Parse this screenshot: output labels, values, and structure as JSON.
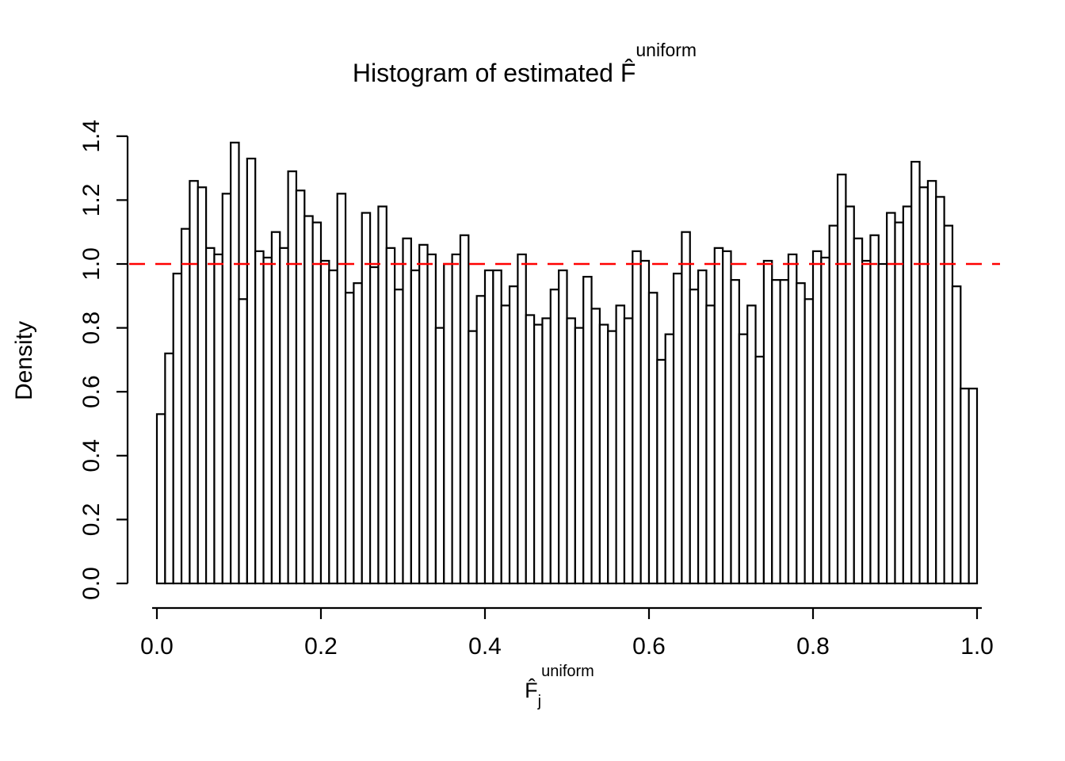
{
  "title": {
    "text": "Histogram of estimated F̂",
    "superscript": "uniform"
  },
  "ylabel": "Density",
  "xlabel": {
    "base": "F̂",
    "subscript": "j",
    "superscript": "uniform"
  },
  "axes": {
    "x_ticks": [
      "0.0",
      "0.2",
      "0.4",
      "0.6",
      "0.8",
      "1.0"
    ],
    "x_tick_values": [
      0.0,
      0.2,
      0.4,
      0.6,
      0.8,
      1.0
    ],
    "y_ticks": [
      "0.0",
      "0.2",
      "0.4",
      "0.6",
      "0.8",
      "1.0",
      "1.2",
      "1.4"
    ],
    "y_tick_values": [
      0.0,
      0.2,
      0.4,
      0.6,
      0.8,
      1.0,
      1.2,
      1.4
    ]
  },
  "reference_line": {
    "value": 1.0,
    "color": "#ff0000",
    "style": "dashed"
  },
  "bar_style": {
    "fill": "#ffffff",
    "stroke": "#000000"
  },
  "chart_data": {
    "type": "bar",
    "subtype": "histogram",
    "title": "Histogram of estimated F̂ uniform",
    "xlabel": "F̂ j uniform",
    "ylabel": "Density",
    "xlim": [
      0.0,
      1.0
    ],
    "ylim": [
      0.0,
      1.4
    ],
    "grid": false,
    "legend": false,
    "bins": {
      "start": 0.0,
      "width": 0.01,
      "count": 100
    },
    "values": [
      0.53,
      0.72,
      0.97,
      1.11,
      1.26,
      1.24,
      1.05,
      1.03,
      1.22,
      1.38,
      0.89,
      1.33,
      1.04,
      1.02,
      1.1,
      1.05,
      1.29,
      1.23,
      1.15,
      1.13,
      1.01,
      0.98,
      1.22,
      0.91,
      0.94,
      1.16,
      0.99,
      1.18,
      1.05,
      0.92,
      1.08,
      0.98,
      1.06,
      1.03,
      0.8,
      1.0,
      1.03,
      1.09,
      0.79,
      0.9,
      0.98,
      0.98,
      0.87,
      0.93,
      1.03,
      0.84,
      0.81,
      0.83,
      0.92,
      0.98,
      0.83,
      0.8,
      0.96,
      0.86,
      0.81,
      0.79,
      0.87,
      0.83,
      1.04,
      1.01,
      0.91,
      0.7,
      0.78,
      0.97,
      1.1,
      0.92,
      0.98,
      0.87,
      1.05,
      1.04,
      0.95,
      0.78,
      0.87,
      0.71,
      1.01,
      0.95,
      0.95,
      1.03,
      0.94,
      0.89,
      1.04,
      1.02,
      1.12,
      1.28,
      1.18,
      1.08,
      1.01,
      1.09,
      1.0,
      1.16,
      1.13,
      1.18,
      1.32,
      1.24,
      1.26,
      1.21,
      1.12,
      0.93,
      0.61,
      0.61
    ],
    "reference_line_y": 1.0
  }
}
